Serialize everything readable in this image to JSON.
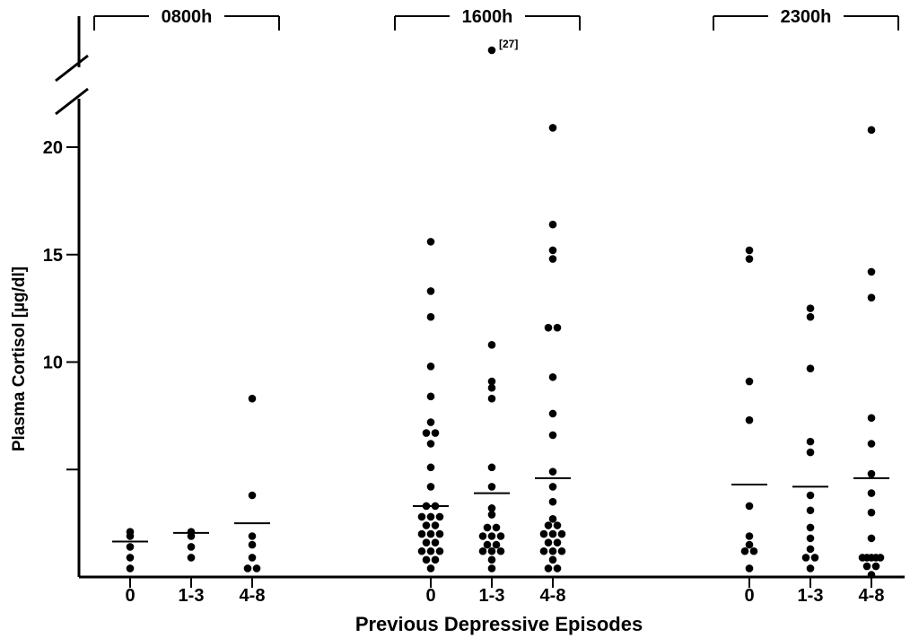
{
  "chart_data": {
    "type": "scatter",
    "title": "",
    "xlabel": "Previous  Depressive  Episodes",
    "ylabel": "Plasma Cortisol  [µg/dl]",
    "y_ticks": [
      {
        "value": 20,
        "label": "20"
      },
      {
        "value": 15,
        "label": "15"
      },
      {
        "value": 10,
        "label": "10"
      },
      {
        "value": 5,
        "label": ""
      }
    ],
    "ylim": [
      0,
      20
    ],
    "axis_break": true,
    "groups": [
      {
        "time": "0800h",
        "categories": [
          {
            "label": "0",
            "mean": 1.65,
            "points": [
              [
                0,
                2.1
              ],
              [
                0,
                1.9
              ],
              [
                0,
                1.4
              ],
              [
                0,
                0.9
              ],
              [
                0,
                0.4
              ]
            ]
          },
          {
            "label": "1-3",
            "mean": 2.05,
            "points": [
              [
                0,
                2.1
              ],
              [
                0,
                1.9
              ],
              [
                0,
                1.4
              ],
              [
                0,
                0.9
              ]
            ]
          },
          {
            "label": "4-8",
            "mean": 2.5,
            "points": [
              [
                0,
                8.3
              ],
              [
                0,
                3.8
              ],
              [
                0,
                1.9
              ],
              [
                0,
                1.5
              ],
              [
                0,
                0.9
              ],
              [
                -0.5,
                0.4
              ],
              [
                0.5,
                0.4
              ]
            ]
          }
        ]
      },
      {
        "time": "1600h",
        "outlier": {
          "value": 27,
          "label": "[27]"
        },
        "categories": [
          {
            "label": "0",
            "mean": 3.3,
            "points": [
              [
                0,
                15.6
              ],
              [
                0,
                13.3
              ],
              [
                0,
                12.1
              ],
              [
                0,
                9.8
              ],
              [
                0,
                8.4
              ],
              [
                0,
                7.2
              ],
              [
                -0.5,
                6.7
              ],
              [
                0.5,
                6.7
              ],
              [
                0,
                6.2
              ],
              [
                0,
                5.1
              ],
              [
                0,
                4.2
              ],
              [
                -0.5,
                3.3
              ],
              [
                0.5,
                3.3
              ],
              [
                -1,
                2.8
              ],
              [
                0,
                2.8
              ],
              [
                1,
                2.8
              ],
              [
                -0.5,
                2.4
              ],
              [
                0.5,
                2.4
              ],
              [
                -1,
                2.0
              ],
              [
                0,
                2.0
              ],
              [
                1,
                2.0
              ],
              [
                -0.5,
                1.6
              ],
              [
                0.5,
                1.6
              ],
              [
                -1,
                1.2
              ],
              [
                0,
                1.2
              ],
              [
                1,
                1.2
              ],
              [
                -0.5,
                0.8
              ],
              [
                0.5,
                0.8
              ],
              [
                0,
                0.4
              ]
            ]
          },
          {
            "label": "1-3",
            "mean": 3.9,
            "points": [
              [
                0,
                10.8
              ],
              [
                0,
                9.1
              ],
              [
                0,
                8.8
              ],
              [
                0,
                8.3
              ],
              [
                0,
                5.1
              ],
              [
                0,
                4.2
              ],
              [
                0,
                3.2
              ],
              [
                0,
                2.9
              ],
              [
                -0.5,
                2.3
              ],
              [
                0.5,
                2.3
              ],
              [
                -1,
                1.9
              ],
              [
                0,
                1.9
              ],
              [
                1,
                1.9
              ],
              [
                -0.5,
                1.5
              ],
              [
                0.5,
                1.5
              ],
              [
                -1,
                1.2
              ],
              [
                0,
                1.2
              ],
              [
                1,
                1.2
              ],
              [
                0,
                0.8
              ],
              [
                0,
                0.4
              ]
            ]
          },
          {
            "label": "4-8",
            "mean": 4.6,
            "points": [
              [
                0,
                20.9
              ],
              [
                0,
                16.4
              ],
              [
                0,
                15.2
              ],
              [
                0,
                14.8
              ],
              [
                -0.5,
                11.6
              ],
              [
                0.5,
                11.6
              ],
              [
                0,
                9.3
              ],
              [
                0,
                7.6
              ],
              [
                0,
                6.6
              ],
              [
                0,
                4.9
              ],
              [
                0,
                4.2
              ],
              [
                0,
                3.5
              ],
              [
                0,
                2.7
              ],
              [
                -0.5,
                2.4
              ],
              [
                0.5,
                2.4
              ],
              [
                -1,
                2.0
              ],
              [
                0,
                2.0
              ],
              [
                1,
                2.0
              ],
              [
                -0.5,
                1.6
              ],
              [
                0.5,
                1.6
              ],
              [
                -1,
                1.2
              ],
              [
                0,
                1.2
              ],
              [
                1,
                1.2
              ],
              [
                0,
                0.8
              ],
              [
                -0.5,
                0.4
              ],
              [
                0.5,
                0.4
              ]
            ]
          }
        ]
      },
      {
        "time": "2300h",
        "categories": [
          {
            "label": "0",
            "mean": 4.3,
            "points": [
              [
                0,
                15.2
              ],
              [
                0,
                14.8
              ],
              [
                0,
                9.1
              ],
              [
                0,
                7.3
              ],
              [
                0,
                3.3
              ],
              [
                0,
                1.9
              ],
              [
                0,
                1.5
              ],
              [
                -0.5,
                1.2
              ],
              [
                0.5,
                1.2
              ],
              [
                0,
                0.4
              ]
            ]
          },
          {
            "label": "1-3",
            "mean": 4.2,
            "points": [
              [
                0,
                12.5
              ],
              [
                0,
                12.1
              ],
              [
                0,
                9.7
              ],
              [
                0,
                6.3
              ],
              [
                0,
                5.8
              ],
              [
                0,
                3.8
              ],
              [
                0,
                3.1
              ],
              [
                0,
                2.3
              ],
              [
                0,
                1.8
              ],
              [
                0,
                1.3
              ],
              [
                -0.5,
                0.9
              ],
              [
                0.5,
                0.9
              ],
              [
                0,
                0.4
              ]
            ]
          },
          {
            "label": "4-8",
            "mean": 4.6,
            "points": [
              [
                0,
                20.8
              ],
              [
                0,
                14.2
              ],
              [
                0,
                13.0
              ],
              [
                0,
                7.4
              ],
              [
                0,
                6.2
              ],
              [
                0,
                4.8
              ],
              [
                0,
                3.9
              ],
              [
                0,
                3.0
              ],
              [
                0,
                1.8
              ],
              [
                -1,
                0.9
              ],
              [
                -0.5,
                0.9
              ],
              [
                0,
                0.9
              ],
              [
                0.5,
                0.9
              ],
              [
                1,
                0.9
              ],
              [
                -0.5,
                0.5
              ],
              [
                0.5,
                0.5
              ],
              [
                0,
                0.1
              ]
            ]
          }
        ]
      }
    ]
  }
}
